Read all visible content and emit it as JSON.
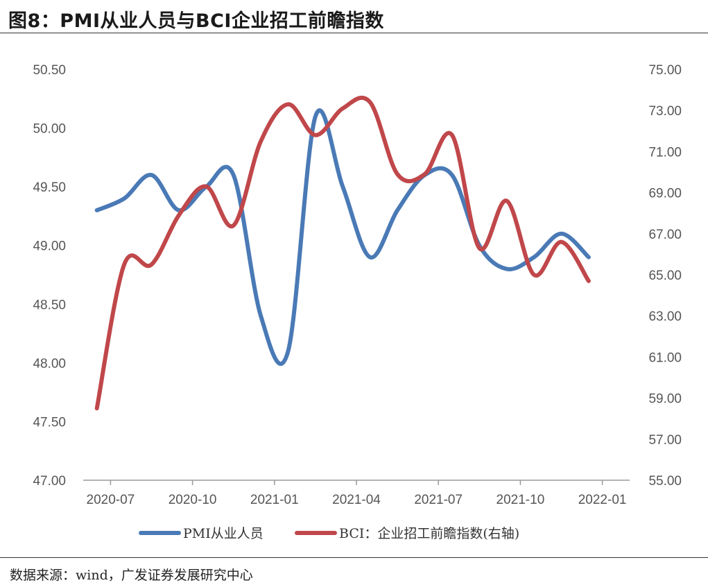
{
  "title": "图8：PMI从业人员与BCI企业招工前瞻指数",
  "source": "数据来源：wind，广发证券发展研究中心",
  "colors": {
    "pmi": "#4a7ab6",
    "bci": "#c0474a",
    "axis": "#999999",
    "text": "#555555"
  },
  "chart_data": {
    "type": "line",
    "x": [
      "2020-06",
      "2020-07",
      "2020-08",
      "2020-09",
      "2020-10",
      "2020-11",
      "2020-12",
      "2021-01",
      "2021-02",
      "2021-03",
      "2021-04",
      "2021-05",
      "2021-06",
      "2021-07",
      "2021-08",
      "2021-09",
      "2021-10",
      "2021-11",
      "2021-12",
      "2022-01"
    ],
    "x_tick_labels": [
      "2020-07",
      "2020-10",
      "2021-01",
      "2021-04",
      "2021-07",
      "2021-10",
      "2022-01"
    ],
    "series": [
      {
        "name": "PMI从业人员",
        "axis": "left",
        "values": [
          49.3,
          49.4,
          49.6,
          49.3,
          49.5,
          49.6,
          48.4,
          48.1,
          50.1,
          49.5,
          48.9,
          49.3,
          49.6,
          49.6,
          49.0,
          48.8,
          48.9,
          49.1,
          48.9,
          null
        ]
      },
      {
        "name": "BCI：企业招工前瞻指数(右轴)",
        "axis": "right",
        "values": [
          58.5,
          65.5,
          65.5,
          67.9,
          69.3,
          67.4,
          71.5,
          73.3,
          71.8,
          73.1,
          73.4,
          69.9,
          69.9,
          71.8,
          66.3,
          68.6,
          65.0,
          66.6,
          64.7,
          null
        ]
      }
    ],
    "left_axis": {
      "min": 47.0,
      "max": 50.5,
      "step": 0.5,
      "tick_labels": [
        "47.00",
        "47.50",
        "48.00",
        "48.50",
        "49.00",
        "49.50",
        "50.00",
        "50.50"
      ]
    },
    "right_axis": {
      "min": 55.0,
      "max": 75.0,
      "step": 2.0,
      "tick_labels": [
        "55.00",
        "57.00",
        "59.00",
        "61.00",
        "63.00",
        "65.00",
        "67.00",
        "69.00",
        "71.00",
        "73.00",
        "75.00"
      ]
    },
    "grid": false,
    "legend_position": "bottom"
  }
}
